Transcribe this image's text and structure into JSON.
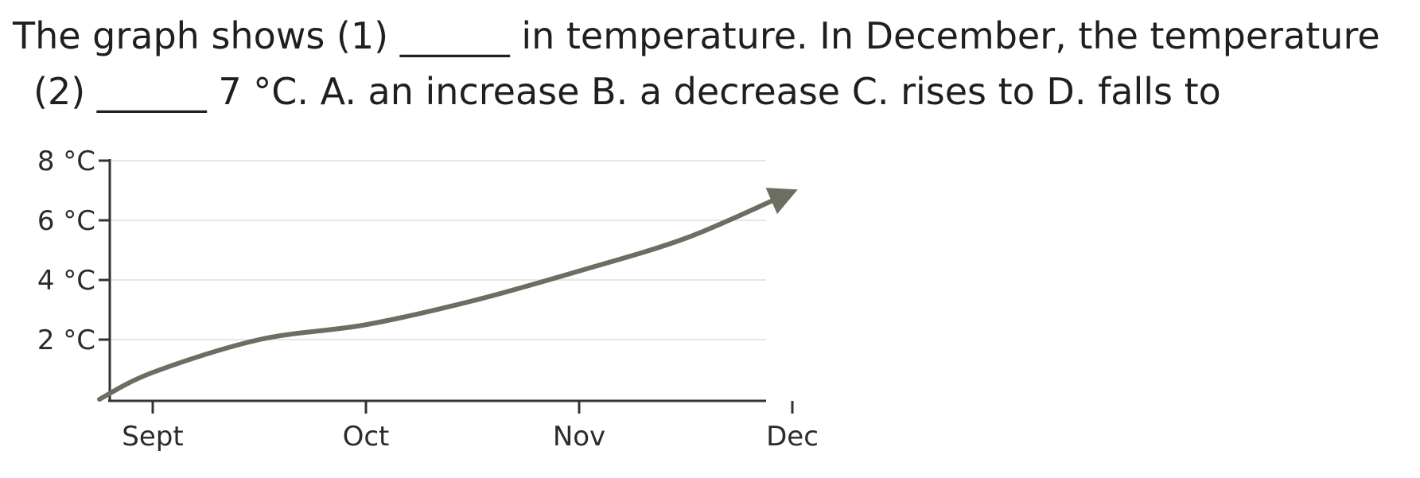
{
  "question": {
    "line1": "The graph shows   (1)  ______ in temperature. In December, the temperature",
    "line2": "(2)  ______ 7 °C. A. an increase B. a decrease C. rises to D. falls to"
  },
  "chart_data": {
    "type": "line",
    "title": "",
    "xlabel": "",
    "ylabel": "",
    "x_ticks": [
      "Sept",
      "Oct",
      "Nov",
      "Dec"
    ],
    "y_ticks": [
      "2 °C",
      "4 °C",
      "6 °C",
      "8 °C"
    ],
    "y_tick_values": [
      2,
      4,
      6,
      8
    ],
    "ylim": [
      0,
      8
    ],
    "grid": true,
    "line_color": "#6b6e60",
    "series": [
      {
        "x": [
          "Sept (start)",
          "Sept",
          "mid Sept",
          "Oct",
          "mid Oct",
          "Nov",
          "mid Nov",
          "Dec (end)"
        ],
        "x_pos": [
          -0.25,
          0,
          0.5,
          1,
          1.5,
          2,
          2.5,
          2.95
        ],
        "values": [
          0,
          0.9,
          2.0,
          2.5,
          3.3,
          4.3,
          5.4,
          6.8
        ]
      }
    ],
    "end_arrow": true
  }
}
